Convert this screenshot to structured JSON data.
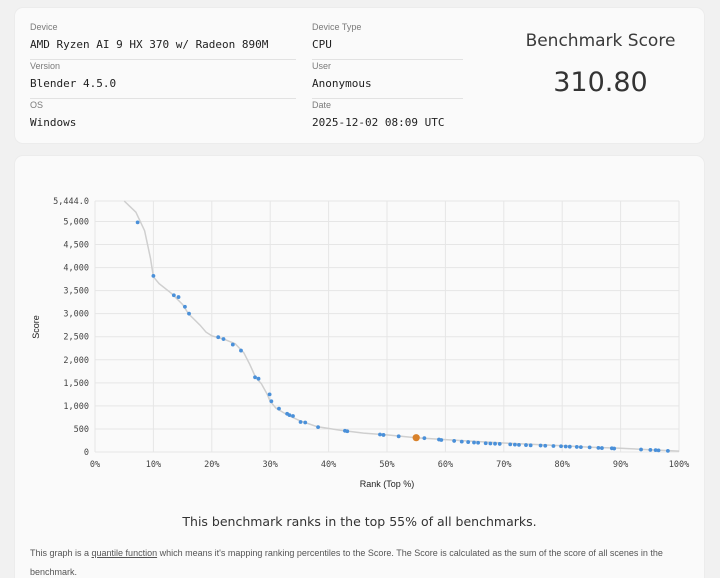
{
  "info": {
    "device_label": "Device",
    "device_value": "AMD Ryzen AI 9 HX 370 w/ Radeon 890M",
    "version_label": "Version",
    "version_value": "Blender 4.5.0",
    "os_label": "OS",
    "os_value": "Windows",
    "type_label": "Device Type",
    "type_value": "CPU",
    "user_label": "User",
    "user_value": "Anonymous",
    "date_label": "Date",
    "date_value": "2025-12-02 08:09 UTC"
  },
  "score": {
    "title": "Benchmark Score",
    "value": "310.80"
  },
  "rank_text": "This benchmark ranks in the top 55% of all benchmarks.",
  "note": {
    "prefix": "This graph is a ",
    "link": "quantile function",
    "suffix": " which means it's mapping ranking percentiles to the Score. The Score is calculated as the sum of the score of all scenes in the benchmark."
  },
  "colors": {
    "point": "#4a90d9",
    "highlight": "#d9822b",
    "curve": "#cfcfcf",
    "grid": "#e6e6e6"
  },
  "chart_data": {
    "type": "scatter",
    "xlabel": "Rank (Top %)",
    "ylabel": "Score",
    "xlim": [
      0,
      100
    ],
    "ylim": [
      0,
      5444
    ],
    "y_ticks": [
      "0",
      "500",
      "1,000",
      "1,500",
      "2,000",
      "2,500",
      "3,000",
      "3,500",
      "4,000",
      "4,500",
      "5,000",
      "5,444.0"
    ],
    "y_tick_values": [
      0,
      500,
      1000,
      1500,
      2000,
      2500,
      3000,
      3500,
      4000,
      4500,
      5000,
      5444
    ],
    "x_ticks": [
      "0%",
      "10%",
      "20%",
      "30%",
      "40%",
      "50%",
      "60%",
      "70%",
      "80%",
      "90%",
      "100%"
    ],
    "x_tick_values": [
      0,
      10,
      20,
      30,
      40,
      50,
      60,
      70,
      80,
      90,
      100
    ],
    "curve": [
      [
        5,
        5444
      ],
      [
        7,
        5200
      ],
      [
        8.5,
        4800
      ],
      [
        9.5,
        4200
      ],
      [
        10,
        3800
      ],
      [
        11,
        3650
      ],
      [
        13,
        3450
      ],
      [
        15,
        3200
      ],
      [
        16,
        3000
      ],
      [
        18,
        2750
      ],
      [
        19,
        2600
      ],
      [
        20,
        2520
      ],
      [
        22,
        2450
      ],
      [
        24,
        2350
      ],
      [
        25.5,
        2150
      ],
      [
        26.5,
        1900
      ],
      [
        27.5,
        1620
      ],
      [
        28.5,
        1480
      ],
      [
        29.5,
        1250
      ],
      [
        30,
        1100
      ],
      [
        31,
        950
      ],
      [
        33,
        800
      ],
      [
        35,
        680
      ],
      [
        38,
        550
      ],
      [
        42,
        470
      ],
      [
        46,
        410
      ],
      [
        50,
        370
      ],
      [
        55,
        310
      ],
      [
        60,
        270
      ],
      [
        65,
        230
      ],
      [
        70,
        195
      ],
      [
        75,
        165
      ],
      [
        80,
        135
      ],
      [
        85,
        105
      ],
      [
        90,
        80
      ],
      [
        95,
        50
      ],
      [
        100,
        20
      ]
    ],
    "points": [
      {
        "x": 7.3,
        "y": 4980
      },
      {
        "x": 10,
        "y": 3820
      },
      {
        "x": 13.5,
        "y": 3400
      },
      {
        "x": 14.3,
        "y": 3360
      },
      {
        "x": 15.4,
        "y": 3150
      },
      {
        "x": 16.1,
        "y": 3000
      },
      {
        "x": 21.1,
        "y": 2490
      },
      {
        "x": 22,
        "y": 2450
      },
      {
        "x": 23.6,
        "y": 2330
      },
      {
        "x": 25,
        "y": 2200
      },
      {
        "x": 27.4,
        "y": 1620
      },
      {
        "x": 28,
        "y": 1590
      },
      {
        "x": 29.9,
        "y": 1250
      },
      {
        "x": 30.2,
        "y": 1100
      },
      {
        "x": 31.5,
        "y": 940
      },
      {
        "x": 32.9,
        "y": 830
      },
      {
        "x": 33.3,
        "y": 800
      },
      {
        "x": 33.9,
        "y": 780
      },
      {
        "x": 35.2,
        "y": 650
      },
      {
        "x": 36,
        "y": 640
      },
      {
        "x": 38.2,
        "y": 540
      },
      {
        "x": 42.8,
        "y": 460
      },
      {
        "x": 43.2,
        "y": 450
      },
      {
        "x": 48.8,
        "y": 380
      },
      {
        "x": 49.4,
        "y": 370
      },
      {
        "x": 52,
        "y": 340
      },
      {
        "x": 56.4,
        "y": 300
      },
      {
        "x": 58.9,
        "y": 270
      },
      {
        "x": 59.3,
        "y": 260
      },
      {
        "x": 61.5,
        "y": 240
      },
      {
        "x": 62.8,
        "y": 225
      },
      {
        "x": 63.9,
        "y": 215
      },
      {
        "x": 64.9,
        "y": 205
      },
      {
        "x": 65.6,
        "y": 200
      },
      {
        "x": 66.9,
        "y": 190
      },
      {
        "x": 67.7,
        "y": 185
      },
      {
        "x": 68.5,
        "y": 180
      },
      {
        "x": 69.3,
        "y": 175
      },
      {
        "x": 71.1,
        "y": 165
      },
      {
        "x": 71.9,
        "y": 160
      },
      {
        "x": 72.6,
        "y": 155
      },
      {
        "x": 73.8,
        "y": 150
      },
      {
        "x": 74.6,
        "y": 145
      },
      {
        "x": 76.3,
        "y": 140
      },
      {
        "x": 77.1,
        "y": 135
      },
      {
        "x": 78.5,
        "y": 130
      },
      {
        "x": 79.8,
        "y": 125
      },
      {
        "x": 80.6,
        "y": 120
      },
      {
        "x": 81.3,
        "y": 115
      },
      {
        "x": 82.5,
        "y": 110
      },
      {
        "x": 83.2,
        "y": 105
      },
      {
        "x": 84.7,
        "y": 100
      },
      {
        "x": 86.2,
        "y": 90
      },
      {
        "x": 86.8,
        "y": 85
      },
      {
        "x": 88.5,
        "y": 80
      },
      {
        "x": 88.9,
        "y": 75
      },
      {
        "x": 93.5,
        "y": 55
      },
      {
        "x": 95.1,
        "y": 45
      },
      {
        "x": 96,
        "y": 40
      },
      {
        "x": 96.5,
        "y": 35
      },
      {
        "x": 98.1,
        "y": 25
      }
    ],
    "highlight": {
      "x": 55,
      "y": 310.8
    }
  }
}
